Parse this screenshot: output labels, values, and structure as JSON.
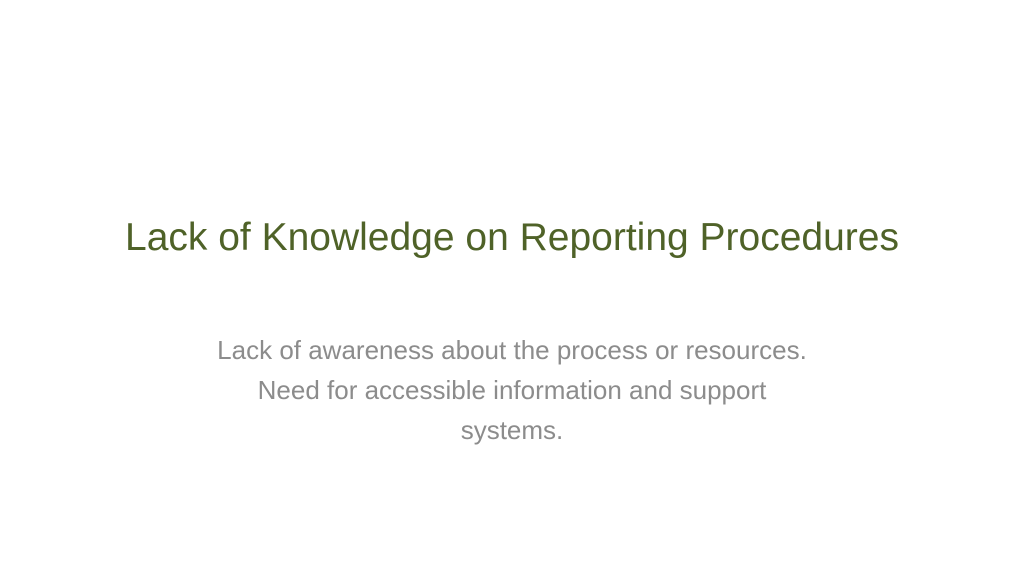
{
  "slide": {
    "title": "Lack of Knowledge on Reporting Procedures",
    "subtitle_lines": [
      "Lack of awareness about the process or resources.",
      "Need for accessible information and support",
      "systems."
    ]
  }
}
